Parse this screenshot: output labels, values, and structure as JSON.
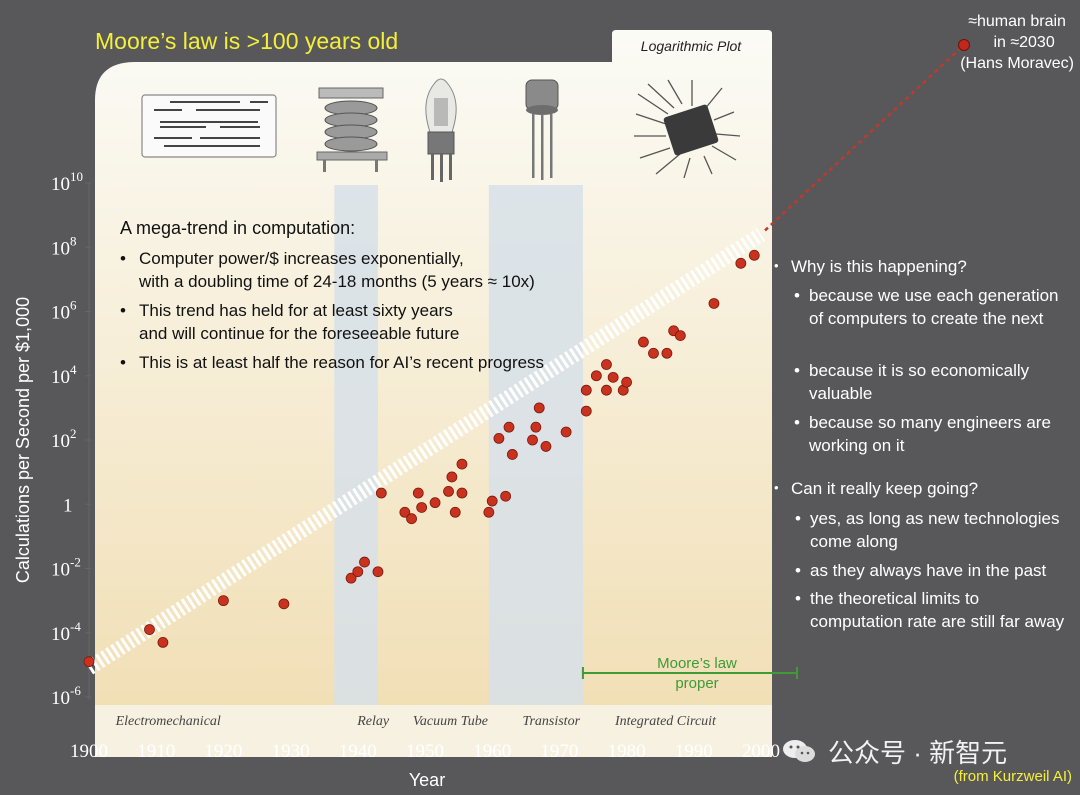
{
  "slide": {
    "title": "Moore’s law is >100 years old",
    "credit": "(from Kurzweil AI)",
    "watermark": "公众号 · 新智元",
    "plot_label": "Logarithmic Plot"
  },
  "brain_note": {
    "line1": "≈human brain",
    "line2": "in ≈2030",
    "line3": "(Hans Moravec)"
  },
  "mega_trend": {
    "title": "A mega-trend in computation:",
    "items": [
      {
        "l1": "Computer power/$ increases exponentially,",
        "l2": "with a doubling time of 24-18 months (5 years ≈ 10x)"
      },
      {
        "l1": "This trend has held for at least sixty years",
        "l2": "and will continue for the foreseeable future"
      },
      {
        "l1": "This is at least half the reason for AI’s recent progress",
        "l2": ""
      }
    ]
  },
  "annotations": {
    "why": {
      "heading": "Why is this happening?",
      "points": [
        "because we use each generation of computers to create the next",
        "because it is so economically valuable",
        "because so many engineers are working on it"
      ]
    },
    "continue": {
      "heading": "Can it really keep going?",
      "points": [
        "yes, as long as new technologies come along",
        "as they always have in the past",
        "the theoretical limits to computation rate are still far away"
      ]
    }
  },
  "chart_data": {
    "type": "scatter",
    "title": "Logarithmic Plot",
    "xlabel": "Year",
    "ylabel": "Calculations per Second per $1,000",
    "xlim": [
      1900,
      2000
    ],
    "ylim_log10": [
      -6,
      10
    ],
    "x_ticks": [
      "1900",
      "1910",
      "1920",
      "1930",
      "1940",
      "1950",
      "1960",
      "1970",
      "1980",
      "1990",
      "2000"
    ],
    "y_ticks": [
      {
        "base": "10",
        "exp": "-6",
        "value": -6
      },
      {
        "base": "10",
        "exp": "-4",
        "value": -4
      },
      {
        "base": "10",
        "exp": "-2",
        "value": -2
      },
      {
        "base": "1",
        "exp": "",
        "value": 0
      },
      {
        "base": "10",
        "exp": "2",
        "value": 2
      },
      {
        "base": "10",
        "exp": "4",
        "value": 4
      },
      {
        "base": "10",
        "exp": "6",
        "value": 6
      },
      {
        "base": "10",
        "exp": "8",
        "value": 8
      },
      {
        "base": "10",
        "exp": "10",
        "value": 10
      }
    ],
    "eras": [
      {
        "name": "Electromechanical",
        "label_year": 1910,
        "range": [
          1900,
          1936
        ],
        "shaded": false
      },
      {
        "name": "Relay",
        "label_year": 1940.5,
        "range": [
          1936.5,
          1943
        ],
        "shaded": true
      },
      {
        "name": "Vacuum Tube",
        "label_year": 1952,
        "range": [
          1943,
          1959.5
        ],
        "shaded": false
      },
      {
        "name": "Transistor",
        "label_year": 1967,
        "range": [
          1959.5,
          1973.5
        ],
        "shaded": true
      },
      {
        "name": "Integrated Circuit",
        "label_year": 1984,
        "range": [
          1973.5,
          2000
        ],
        "shaded": false
      }
    ],
    "trend": {
      "from": [
        1900,
        -5.1
      ],
      "to": [
        2000,
        8.4
      ],
      "extension_to": [
        2030,
        13.9
      ]
    },
    "target_point": {
      "year": 2030,
      "log10": 13.9,
      "label": "≈human brain in ≈2030"
    },
    "moores_law_span": {
      "range": [
        1973.5,
        2006
      ],
      "label_l1": "Moore’s law",
      "label_l2": "proper"
    },
    "points_log10": [
      [
        1900,
        -4.9
      ],
      [
        1909,
        -3.9
      ],
      [
        1911,
        -4.3
      ],
      [
        1920,
        -3.0
      ],
      [
        1929,
        -3.1
      ],
      [
        1939,
        -2.3
      ],
      [
        1940,
        -2.1
      ],
      [
        1941,
        -1.8
      ],
      [
        1943,
        -2.1
      ],
      [
        1943.5,
        0.35
      ],
      [
        1947,
        -0.25
      ],
      [
        1948,
        -0.45
      ],
      [
        1949,
        0.35
      ],
      [
        1949.5,
        -0.1
      ],
      [
        1951.5,
        0.05
      ],
      [
        1953.5,
        0.4
      ],
      [
        1954,
        0.85
      ],
      [
        1954.5,
        -0.25
      ],
      [
        1955.5,
        1.25
      ],
      [
        1955.5,
        0.35
      ],
      [
        1959.5,
        -0.25
      ],
      [
        1960,
        0.1
      ],
      [
        1961,
        2.05
      ],
      [
        1962,
        0.25
      ],
      [
        1962.5,
        2.4
      ],
      [
        1963,
        1.55
      ],
      [
        1966,
        2.0
      ],
      [
        1966.5,
        2.4
      ],
      [
        1967,
        3.0
      ],
      [
        1968,
        1.8
      ],
      [
        1971,
        2.25
      ],
      [
        1974,
        3.55
      ],
      [
        1974,
        2.9
      ],
      [
        1975.5,
        4.0
      ],
      [
        1977,
        4.35
      ],
      [
        1977,
        3.55
      ],
      [
        1978,
        3.95
      ],
      [
        1979.5,
        3.55
      ],
      [
        1980,
        3.8
      ],
      [
        1982.5,
        5.05
      ],
      [
        1984,
        4.7
      ],
      [
        1986,
        4.7
      ],
      [
        1987,
        5.4
      ],
      [
        1988,
        5.25
      ],
      [
        1993,
        6.25
      ],
      [
        1997,
        7.5
      ],
      [
        1999,
        7.75
      ]
    ]
  }
}
